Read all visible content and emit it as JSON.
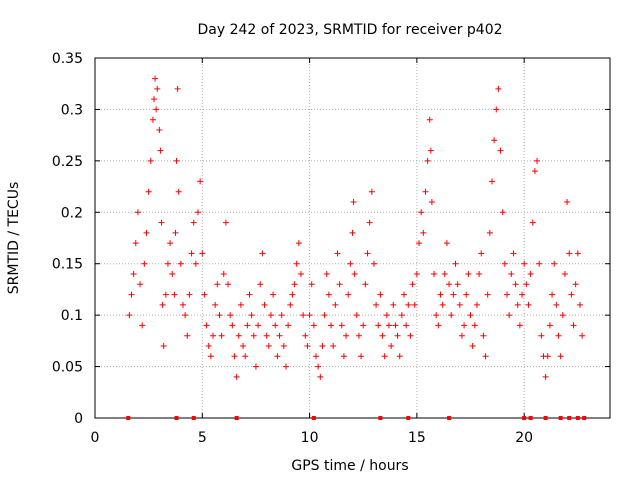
{
  "chart_data": {
    "type": "scatter",
    "title": "Day 242 of 2023, SRMTID for receiver p402",
    "xlabel": "GPS time / hours",
    "ylabel": "SRMTID / TECUs",
    "xlim": [
      0,
      24
    ],
    "ylim": [
      0,
      0.35
    ],
    "x_ticks": [
      0,
      5,
      10,
      15,
      20
    ],
    "x_tick_labels": [
      "0",
      "5",
      "10",
      "15",
      "20"
    ],
    "y_ticks": [
      0,
      0.05,
      0.1,
      0.15,
      0.2,
      0.25,
      0.3,
      0.35
    ],
    "y_tick_labels": [
      "0",
      "0.05",
      "0.1",
      "0.15",
      "0.2",
      "0.25",
      "0.3",
      "0.35"
    ],
    "grid": true,
    "marker": "+",
    "color": "#ff0000",
    "series": [
      {
        "name": "SRMTID",
        "points": [
          [
            1.6,
            0.1
          ],
          [
            1.7,
            0.12
          ],
          [
            1.8,
            0.14
          ],
          [
            1.9,
            0.17
          ],
          [
            2.0,
            0.2
          ],
          [
            2.1,
            0.13
          ],
          [
            2.2,
            0.09
          ],
          [
            2.3,
            0.15
          ],
          [
            2.4,
            0.18
          ],
          [
            2.5,
            0.22
          ],
          [
            2.6,
            0.25
          ],
          [
            2.7,
            0.29
          ],
          [
            2.75,
            0.31
          ],
          [
            2.8,
            0.33
          ],
          [
            2.85,
            0.3
          ],
          [
            2.9,
            0.32
          ],
          [
            3.0,
            0.28
          ],
          [
            3.05,
            0.26
          ],
          [
            3.1,
            0.19
          ],
          [
            3.15,
            0.11
          ],
          [
            3.2,
            0.07
          ],
          [
            3.3,
            0.12
          ],
          [
            3.4,
            0.15
          ],
          [
            3.5,
            0.17
          ],
          [
            3.6,
            0.14
          ],
          [
            3.7,
            0.12
          ],
          [
            3.75,
            0.18
          ],
          [
            3.8,
            0.25
          ],
          [
            3.85,
            0.32
          ],
          [
            3.9,
            0.22
          ],
          [
            4.0,
            0.15
          ],
          [
            4.1,
            0.11
          ],
          [
            4.2,
            0.1
          ],
          [
            4.3,
            0.08
          ],
          [
            4.4,
            0.12
          ],
          [
            4.5,
            0.16
          ],
          [
            4.6,
            0.19
          ],
          [
            4.7,
            0.15
          ],
          [
            4.8,
            0.2
          ],
          [
            4.9,
            0.23
          ],
          [
            5.0,
            0.16
          ],
          [
            5.1,
            0.12
          ],
          [
            5.2,
            0.09
          ],
          [
            5.3,
            0.07
          ],
          [
            5.4,
            0.06
          ],
          [
            5.5,
            0.08
          ],
          [
            5.6,
            0.11
          ],
          [
            5.7,
            0.13
          ],
          [
            5.8,
            0.1
          ],
          [
            5.9,
            0.08
          ],
          [
            6.0,
            0.14
          ],
          [
            6.1,
            0.19
          ],
          [
            6.2,
            0.13
          ],
          [
            6.3,
            0.1
          ],
          [
            6.4,
            0.09
          ],
          [
            6.5,
            0.06
          ],
          [
            6.6,
            0.04
          ],
          [
            6.7,
            0.08
          ],
          [
            6.8,
            0.11
          ],
          [
            6.9,
            0.07
          ],
          [
            7.0,
            0.06
          ],
          [
            7.1,
            0.09
          ],
          [
            7.2,
            0.12
          ],
          [
            7.3,
            0.1
          ],
          [
            7.4,
            0.08
          ],
          [
            7.5,
            0.05
          ],
          [
            7.6,
            0.09
          ],
          [
            7.7,
            0.13
          ],
          [
            7.8,
            0.16
          ],
          [
            7.9,
            0.11
          ],
          [
            8.0,
            0.08
          ],
          [
            8.1,
            0.07
          ],
          [
            8.2,
            0.1
          ],
          [
            8.3,
            0.12
          ],
          [
            8.4,
            0.09
          ],
          [
            8.5,
            0.06
          ],
          [
            8.6,
            0.08
          ],
          [
            8.7,
            0.1
          ],
          [
            8.8,
            0.07
          ],
          [
            8.9,
            0.05
          ],
          [
            9.0,
            0.09
          ],
          [
            9.1,
            0.11
          ],
          [
            9.2,
            0.12
          ],
          [
            9.3,
            0.13
          ],
          [
            9.4,
            0.15
          ],
          [
            9.5,
            0.17
          ],
          [
            9.6,
            0.14
          ],
          [
            9.7,
            0.1
          ],
          [
            9.8,
            0.08
          ],
          [
            9.9,
            0.07
          ],
          [
            10.0,
            0.1
          ],
          [
            10.1,
            0.13
          ],
          [
            10.2,
            0.09
          ],
          [
            10.3,
            0.06
          ],
          [
            10.4,
            0.05
          ],
          [
            10.5,
            0.04
          ],
          [
            10.6,
            0.07
          ],
          [
            10.7,
            0.1
          ],
          [
            10.8,
            0.14
          ],
          [
            10.9,
            0.12
          ],
          [
            11.0,
            0.09
          ],
          [
            11.1,
            0.07
          ],
          [
            11.2,
            0.11
          ],
          [
            11.3,
            0.16
          ],
          [
            11.4,
            0.13
          ],
          [
            11.5,
            0.09
          ],
          [
            11.6,
            0.06
          ],
          [
            11.7,
            0.08
          ],
          [
            11.8,
            0.12
          ],
          [
            11.9,
            0.15
          ],
          [
            12.0,
            0.18
          ],
          [
            12.05,
            0.21
          ],
          [
            12.1,
            0.14
          ],
          [
            12.2,
            0.1
          ],
          [
            12.3,
            0.08
          ],
          [
            12.4,
            0.06
          ],
          [
            12.5,
            0.09
          ],
          [
            12.6,
            0.13
          ],
          [
            12.7,
            0.16
          ],
          [
            12.8,
            0.19
          ],
          [
            12.9,
            0.22
          ],
          [
            13.0,
            0.15
          ],
          [
            13.1,
            0.11
          ],
          [
            13.2,
            0.09
          ],
          [
            13.3,
            0.12
          ],
          [
            13.4,
            0.08
          ],
          [
            13.5,
            0.06
          ],
          [
            13.6,
            0.1
          ],
          [
            13.7,
            0.09
          ],
          [
            13.8,
            0.07
          ],
          [
            13.9,
            0.11
          ],
          [
            14.0,
            0.09
          ],
          [
            14.1,
            0.08
          ],
          [
            14.2,
            0.06
          ],
          [
            14.3,
            0.1
          ],
          [
            14.4,
            0.12
          ],
          [
            14.5,
            0.09
          ],
          [
            14.6,
            0.11
          ],
          [
            14.7,
            0.08
          ],
          [
            14.8,
            0.13
          ],
          [
            14.9,
            0.11
          ],
          [
            15.0,
            0.14
          ],
          [
            15.1,
            0.17
          ],
          [
            15.2,
            0.2
          ],
          [
            15.3,
            0.18
          ],
          [
            15.4,
            0.22
          ],
          [
            15.5,
            0.25
          ],
          [
            15.6,
            0.29
          ],
          [
            15.65,
            0.26
          ],
          [
            15.7,
            0.21
          ],
          [
            15.8,
            0.14
          ],
          [
            15.9,
            0.1
          ],
          [
            16.0,
            0.09
          ],
          [
            16.1,
            0.12
          ],
          [
            16.2,
            0.11
          ],
          [
            16.3,
            0.14
          ],
          [
            16.4,
            0.17
          ],
          [
            16.5,
            0.13
          ],
          [
            16.6,
            0.1
          ],
          [
            16.7,
            0.12
          ],
          [
            16.8,
            0.15
          ],
          [
            16.9,
            0.13
          ],
          [
            17.0,
            0.11
          ],
          [
            17.1,
            0.08
          ],
          [
            17.2,
            0.09
          ],
          [
            17.3,
            0.12
          ],
          [
            17.4,
            0.14
          ],
          [
            17.5,
            0.1
          ],
          [
            17.6,
            0.07
          ],
          [
            17.7,
            0.09
          ],
          [
            17.8,
            0.11
          ],
          [
            17.9,
            0.14
          ],
          [
            18.0,
            0.16
          ],
          [
            18.1,
            0.08
          ],
          [
            18.2,
            0.06
          ],
          [
            18.3,
            0.12
          ],
          [
            18.4,
            0.18
          ],
          [
            18.5,
            0.23
          ],
          [
            18.6,
            0.27
          ],
          [
            18.7,
            0.3
          ],
          [
            18.8,
            0.32
          ],
          [
            18.9,
            0.26
          ],
          [
            19.0,
            0.2
          ],
          [
            19.1,
            0.15
          ],
          [
            19.2,
            0.12
          ],
          [
            19.3,
            0.1
          ],
          [
            19.4,
            0.14
          ],
          [
            19.5,
            0.16
          ],
          [
            19.6,
            0.13
          ],
          [
            19.7,
            0.11
          ],
          [
            19.8,
            0.09
          ],
          [
            19.9,
            0.12
          ],
          [
            20.0,
            0.15
          ],
          [
            20.1,
            0.13
          ],
          [
            20.2,
            0.11
          ],
          [
            20.3,
            0.14
          ],
          [
            20.4,
            0.19
          ],
          [
            20.5,
            0.24
          ],
          [
            20.6,
            0.25
          ],
          [
            20.7,
            0.15
          ],
          [
            20.8,
            0.08
          ],
          [
            20.9,
            0.06
          ],
          [
            21.0,
            0.04
          ],
          [
            21.1,
            0.06
          ],
          [
            21.2,
            0.09
          ],
          [
            21.3,
            0.12
          ],
          [
            21.4,
            0.15
          ],
          [
            21.5,
            0.11
          ],
          [
            21.6,
            0.08
          ],
          [
            21.7,
            0.06
          ],
          [
            21.8,
            0.1
          ],
          [
            21.9,
            0.14
          ],
          [
            22.0,
            0.21
          ],
          [
            22.1,
            0.16
          ],
          [
            22.2,
            0.12
          ],
          [
            22.3,
            0.09
          ],
          [
            22.4,
            0.13
          ],
          [
            22.5,
            0.16
          ],
          [
            22.6,
            0.11
          ],
          [
            22.7,
            0.08
          ]
        ]
      }
    ],
    "zero_markers_x": [
      1.55,
      3.8,
      4.6,
      6.6,
      10.2,
      13.3,
      14.6,
      16.5,
      20.0,
      20.3,
      21.0,
      21.7,
      22.1,
      22.5,
      22.8
    ]
  }
}
